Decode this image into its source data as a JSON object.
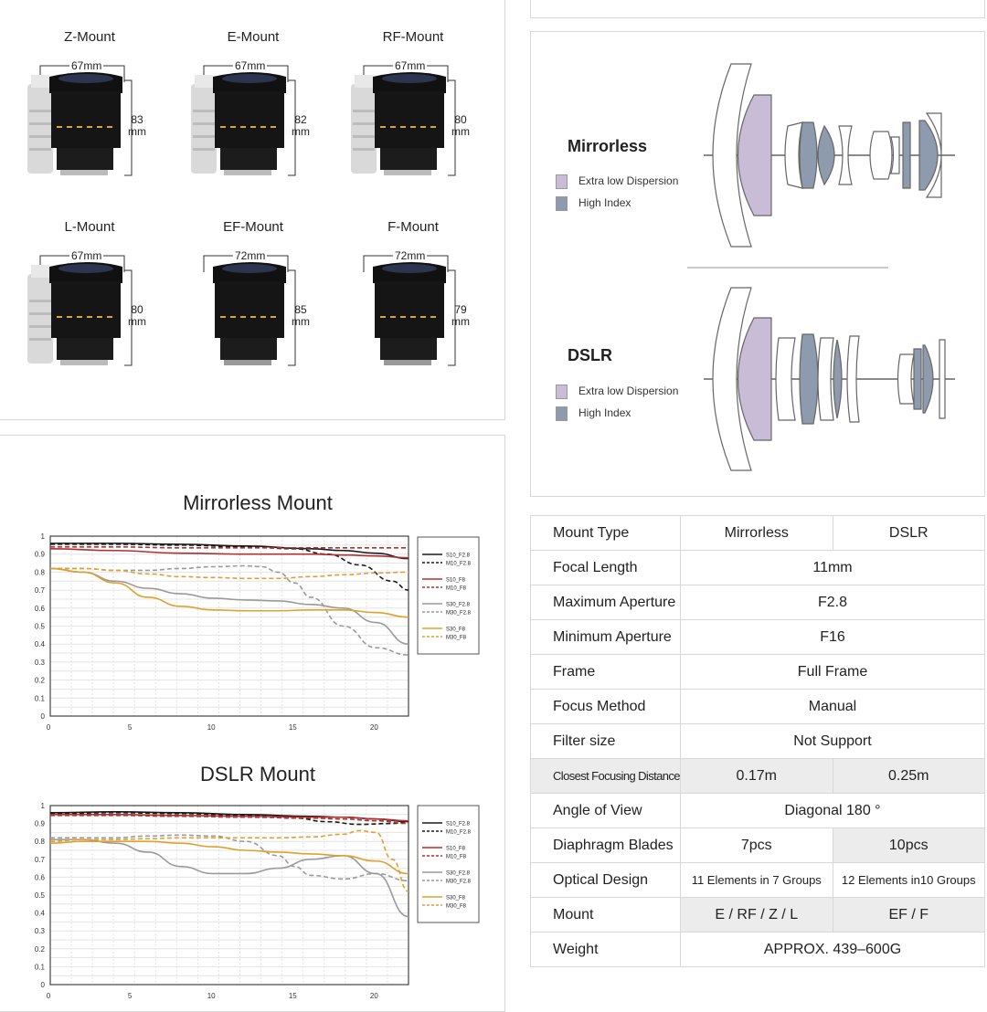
{
  "mounts": [
    {
      "name": "Z-Mount",
      "width": "67mm",
      "height_num": "83",
      "height_unit": "mm"
    },
    {
      "name": "E-Mount",
      "width": "67mm",
      "height_num": "82",
      "height_unit": "mm"
    },
    {
      "name": "RF-Mount",
      "width": "67mm",
      "height_num": "80",
      "height_unit": "mm"
    },
    {
      "name": "L-Mount",
      "width": "67mm",
      "height_num": "80",
      "height_unit": "mm"
    },
    {
      "name": "EF-Mount",
      "width": "72mm",
      "height_num": "85",
      "height_unit": "mm"
    },
    {
      "name": "F-Mount",
      "width": "72mm",
      "height_num": "79",
      "height_unit": "mm"
    }
  ],
  "optics": {
    "mirrorless": {
      "title": "Mirrorless",
      "legend": [
        "Extra low Dispersion",
        "High Index"
      ]
    },
    "dslr": {
      "title": "DSLR",
      "legend": [
        "Extra low Dispersion",
        "High Index"
      ]
    },
    "colors": {
      "ed": "#c9bcd6",
      "hi": "#8e9aae"
    }
  },
  "chart_data": [
    {
      "type": "line",
      "title": "Mirrorless Mount",
      "xlim": [
        0,
        22
      ],
      "ylim": [
        0,
        1
      ],
      "xticks": [
        "0",
        "5",
        "10",
        "15",
        "20"
      ],
      "yticks": [
        "0",
        "0.1",
        "0.2",
        "0.3",
        "0.4",
        "0.5",
        "0.6",
        "0.7",
        "0.8",
        "0.9",
        "1"
      ],
      "series": [
        {
          "name": "S10_F2.8",
          "color": "#1a1a1a",
          "dash": false,
          "x": [
            0,
            4,
            8,
            12,
            16,
            18,
            20,
            22
          ],
          "y": [
            0.96,
            0.96,
            0.955,
            0.945,
            0.93,
            0.92,
            0.905,
            0.875
          ]
        },
        {
          "name": "M10_F2.8",
          "color": "#1a1a1a",
          "dash": true,
          "x": [
            0,
            4,
            8,
            12,
            15,
            17,
            19,
            21,
            22
          ],
          "y": [
            0.955,
            0.955,
            0.95,
            0.94,
            0.93,
            0.9,
            0.84,
            0.75,
            0.7
          ]
        },
        {
          "name": "S10_F8",
          "color": "#b03030",
          "dash": false,
          "x": [
            0,
            4,
            8,
            12,
            16,
            18,
            20,
            22
          ],
          "y": [
            0.93,
            0.92,
            0.905,
            0.9,
            0.9,
            0.895,
            0.89,
            0.88
          ]
        },
        {
          "name": "M10_F8",
          "color": "#b03030",
          "dash": true,
          "x": [
            0,
            4,
            8,
            12,
            16,
            18,
            20,
            22
          ],
          "y": [
            0.94,
            0.94,
            0.935,
            0.935,
            0.935,
            0.935,
            0.935,
            0.935
          ]
        },
        {
          "name": "S30_F2.8",
          "color": "#9a9a9a",
          "dash": false,
          "x": [
            0,
            2,
            4,
            6,
            8,
            10,
            12,
            14,
            16,
            18,
            20,
            22
          ],
          "y": [
            0.82,
            0.8,
            0.75,
            0.71,
            0.68,
            0.655,
            0.645,
            0.64,
            0.62,
            0.6,
            0.52,
            0.4
          ]
        },
        {
          "name": "M30_F2.8",
          "color": "#9a9a9a",
          "dash": true,
          "x": [
            0,
            2,
            4,
            6,
            8,
            10,
            12,
            13,
            14,
            15,
            16,
            18,
            20,
            22
          ],
          "y": [
            0.82,
            0.82,
            0.81,
            0.81,
            0.82,
            0.83,
            0.835,
            0.83,
            0.8,
            0.74,
            0.66,
            0.5,
            0.38,
            0.34
          ]
        },
        {
          "name": "S30_F8",
          "color": "#e0a030",
          "dash": false,
          "x": [
            0,
            2,
            4,
            6,
            8,
            10,
            12,
            14,
            16,
            18,
            20,
            22
          ],
          "y": [
            0.82,
            0.8,
            0.74,
            0.66,
            0.61,
            0.59,
            0.585,
            0.585,
            0.59,
            0.59,
            0.575,
            0.55
          ]
        },
        {
          "name": "M30_F8",
          "color": "#e0a030",
          "dash": true,
          "x": [
            0,
            2,
            4,
            6,
            8,
            10,
            12,
            14,
            16,
            18,
            20,
            22
          ],
          "y": [
            0.82,
            0.82,
            0.81,
            0.79,
            0.775,
            0.77,
            0.765,
            0.765,
            0.775,
            0.785,
            0.795,
            0.8
          ]
        }
      ]
    },
    {
      "type": "line",
      "title": "DSLR Mount",
      "xlim": [
        0,
        22
      ],
      "ylim": [
        0,
        1
      ],
      "xticks": [
        "0",
        "5",
        "10",
        "15",
        "20"
      ],
      "yticks": [
        "0",
        "0.1",
        "0.2",
        "0.3",
        "0.4",
        "0.5",
        "0.6",
        "0.7",
        "0.8",
        "0.9",
        "1"
      ],
      "series": [
        {
          "name": "S10_F2.8",
          "color": "#1a1a1a",
          "dash": false,
          "x": [
            0,
            4,
            8,
            12,
            16,
            18,
            20,
            22
          ],
          "y": [
            0.96,
            0.965,
            0.96,
            0.95,
            0.94,
            0.935,
            0.925,
            0.91
          ]
        },
        {
          "name": "M10_F2.8",
          "color": "#1a1a1a",
          "dash": true,
          "x": [
            0,
            4,
            8,
            12,
            15,
            17,
            19,
            21,
            22
          ],
          "y": [
            0.955,
            0.96,
            0.955,
            0.945,
            0.93,
            0.91,
            0.895,
            0.9,
            0.91
          ]
        },
        {
          "name": "S10_F8",
          "color": "#b03030",
          "dash": false,
          "x": [
            0,
            4,
            8,
            12,
            16,
            18,
            20,
            22
          ],
          "y": [
            0.95,
            0.95,
            0.945,
            0.94,
            0.935,
            0.935,
            0.925,
            0.915
          ]
        },
        {
          "name": "M10_F8",
          "color": "#b03030",
          "dash": true,
          "x": [
            0,
            4,
            8,
            12,
            16,
            18,
            20,
            22
          ],
          "y": [
            0.945,
            0.945,
            0.94,
            0.935,
            0.93,
            0.925,
            0.915,
            0.9
          ]
        },
        {
          "name": "S30_F2.8",
          "color": "#9a9a9a",
          "dash": false,
          "x": [
            0,
            2,
            4,
            6,
            8,
            10,
            12,
            14,
            16,
            18,
            20,
            22
          ],
          "y": [
            0.81,
            0.81,
            0.79,
            0.74,
            0.66,
            0.62,
            0.62,
            0.65,
            0.7,
            0.72,
            0.62,
            0.38
          ]
        },
        {
          "name": "M30_F2.8",
          "color": "#9a9a9a",
          "dash": true,
          "x": [
            0,
            2,
            4,
            6,
            8,
            10,
            12,
            14,
            15,
            16,
            18,
            20,
            22
          ],
          "y": [
            0.82,
            0.82,
            0.82,
            0.83,
            0.835,
            0.83,
            0.8,
            0.72,
            0.66,
            0.61,
            0.59,
            0.62,
            0.58
          ]
        },
        {
          "name": "S30_F8",
          "color": "#e0a030",
          "dash": false,
          "x": [
            0,
            2,
            4,
            6,
            8,
            10,
            12,
            14,
            16,
            18,
            20,
            22
          ],
          "y": [
            0.79,
            0.8,
            0.8,
            0.8,
            0.79,
            0.77,
            0.75,
            0.74,
            0.73,
            0.72,
            0.69,
            0.62
          ]
        },
        {
          "name": "M30_F8",
          "color": "#e0a030",
          "dash": true,
          "x": [
            0,
            2,
            4,
            6,
            8,
            10,
            12,
            14,
            16,
            18,
            19,
            20,
            21,
            22
          ],
          "y": [
            0.8,
            0.81,
            0.81,
            0.815,
            0.82,
            0.82,
            0.82,
            0.82,
            0.825,
            0.84,
            0.86,
            0.85,
            0.7,
            0.52
          ]
        }
      ]
    }
  ],
  "specs": {
    "rows": [
      {
        "label": "Mount Type",
        "values": [
          "Mirrorless",
          "DSLR"
        ]
      },
      {
        "label": "Focal Length",
        "values": [
          "11mm"
        ]
      },
      {
        "label": "Maximum Aperture",
        "values": [
          "F2.8"
        ]
      },
      {
        "label": "Minimum Aperture",
        "values": [
          "F16"
        ]
      },
      {
        "label": "Frame",
        "values": [
          "Full Frame"
        ]
      },
      {
        "label": "Focus Method",
        "values": [
          "Manual"
        ]
      },
      {
        "label": "Filter size",
        "values": [
          "Not Support"
        ]
      },
      {
        "label": "Closest Focusing Distance",
        "values": [
          "0.17m",
          "0.25m"
        ]
      },
      {
        "label": "Angle of View",
        "values": [
          "Diagonal 180 °"
        ]
      },
      {
        "label": "Diaphragm Blades",
        "values": [
          "7pcs",
          "10pcs"
        ]
      },
      {
        "label": "Optical Design",
        "values": [
          "11 Elements in 7 Groups",
          "12 Elements in10 Groups"
        ]
      },
      {
        "label": "Mount",
        "values": [
          "E / RF / Z / L",
          "EF / F"
        ]
      },
      {
        "label": "Weight",
        "values": [
          "APPROX. 439–600G"
        ]
      }
    ]
  }
}
